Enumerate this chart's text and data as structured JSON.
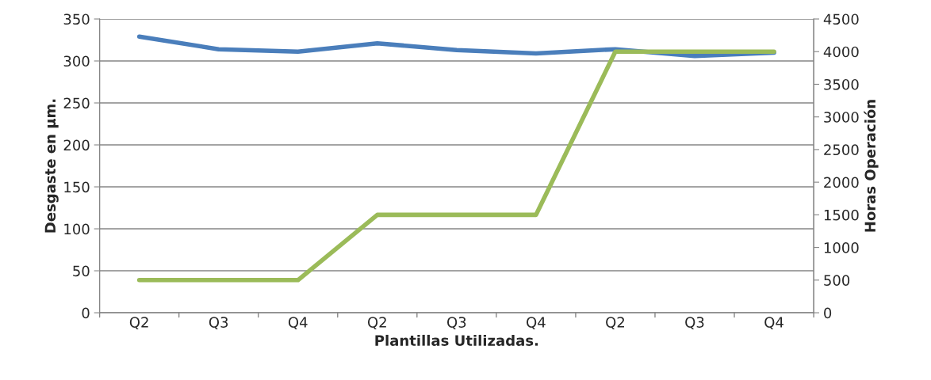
{
  "chart_data": {
    "type": "line",
    "xlabel": "Plantillas Utilizadas.",
    "ylabel": "Desgaste en µm.",
    "y2label": "Horas Operación",
    "categories": [
      "Q2",
      "Q3",
      "Q4",
      "Q2",
      "Q3",
      "Q4",
      "Q2",
      "Q3",
      "Q4"
    ],
    "series": [
      {
        "color": "#4a7ebb",
        "values": [
          329,
          314,
          311,
          321,
          313,
          309,
          314,
          306,
          310
        ]
      },
      {
        "color": "#9bbb59",
        "axis": "y2",
        "values": [
          500,
          500,
          500,
          1500,
          1500,
          1500,
          4000,
          4000,
          4000
        ]
      }
    ],
    "ylim": [
      0,
      350
    ],
    "yticks": [
      0,
      50,
      100,
      150,
      200,
      250,
      300,
      350
    ],
    "y2lim": [
      0,
      4500
    ],
    "y2ticks": [
      0,
      500,
      1000,
      1500,
      2000,
      2500,
      3000,
      3500,
      4000,
      4500
    ],
    "grid": "y",
    "legend": false,
    "marker": "none",
    "line_style": "solid"
  }
}
